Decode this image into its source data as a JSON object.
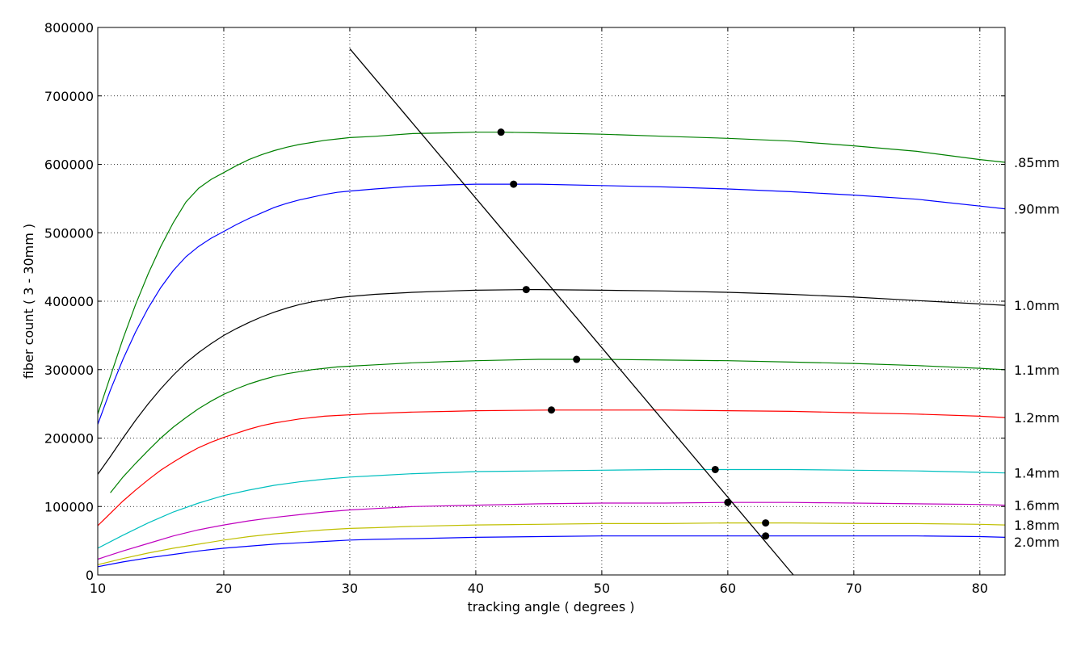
{
  "chart_data": {
    "type": "line",
    "title": "",
    "xlabel": "tracking angle ( degrees )",
    "ylabel": "fiber count ( 3 - 30mm )",
    "xlim": [
      10,
      82
    ],
    "ylim": [
      0,
      800000
    ],
    "grid": true,
    "xticks": [
      10,
      20,
      30,
      40,
      50,
      60,
      70,
      80
    ],
    "yticks": [
      0,
      100000,
      200000,
      300000,
      400000,
      500000,
      600000,
      700000,
      800000
    ],
    "xtick_labels": [
      "10",
      "20",
      "30",
      "40",
      "50",
      "60",
      "70",
      "80"
    ],
    "ytick_labels": [
      "0",
      "100000",
      "200000",
      "300000",
      "400000",
      "500000",
      "600000",
      "700000",
      "800000"
    ],
    "series": [
      {
        "name": ".85mm",
        "label": ".85mm",
        "color": "#008000",
        "points": [
          [
            10,
            235000
          ],
          [
            11,
            290000
          ],
          [
            12,
            345000
          ],
          [
            13,
            395000
          ],
          [
            14,
            440000
          ],
          [
            15,
            480000
          ],
          [
            16,
            515000
          ],
          [
            17,
            545000
          ],
          [
            18,
            565000
          ],
          [
            19,
            578000
          ],
          [
            20,
            588000
          ],
          [
            21,
            598000
          ],
          [
            22,
            607000
          ],
          [
            23,
            614000
          ],
          [
            24,
            620000
          ],
          [
            25,
            625000
          ],
          [
            26,
            629000
          ],
          [
            27,
            632000
          ],
          [
            28,
            635000
          ],
          [
            29,
            637000
          ],
          [
            30,
            639000
          ],
          [
            32,
            641000
          ],
          [
            35,
            645000
          ],
          [
            38,
            646000
          ],
          [
            40,
            647000
          ],
          [
            42,
            647000
          ],
          [
            45,
            646000
          ],
          [
            50,
            644000
          ],
          [
            55,
            641000
          ],
          [
            60,
            638000
          ],
          [
            65,
            634000
          ],
          [
            70,
            627000
          ],
          [
            75,
            619000
          ],
          [
            80,
            607000
          ],
          [
            82,
            603000
          ]
        ],
        "marker": [
          42,
          647000
        ]
      },
      {
        "name": ".90mm",
        "label": ".90mm",
        "color": "#0000ff",
        "points": [
          [
            10,
            220000
          ],
          [
            11,
            270000
          ],
          [
            12,
            315000
          ],
          [
            13,
            355000
          ],
          [
            14,
            390000
          ],
          [
            15,
            420000
          ],
          [
            16,
            445000
          ],
          [
            17,
            465000
          ],
          [
            18,
            480000
          ],
          [
            19,
            492000
          ],
          [
            20,
            502000
          ],
          [
            21,
            512000
          ],
          [
            22,
            521000
          ],
          [
            23,
            529000
          ],
          [
            24,
            537000
          ],
          [
            25,
            543000
          ],
          [
            26,
            548000
          ],
          [
            27,
            552000
          ],
          [
            28,
            556000
          ],
          [
            29,
            559000
          ],
          [
            30,
            561000
          ],
          [
            32,
            564000
          ],
          [
            35,
            568000
          ],
          [
            38,
            570000
          ],
          [
            40,
            571000
          ],
          [
            43,
            571000
          ],
          [
            45,
            571000
          ],
          [
            50,
            569000
          ],
          [
            55,
            567000
          ],
          [
            60,
            564000
          ],
          [
            65,
            560000
          ],
          [
            70,
            555000
          ],
          [
            75,
            549000
          ],
          [
            80,
            539000
          ],
          [
            82,
            535000
          ]
        ],
        "marker": [
          43,
          571000
        ]
      },
      {
        "name": "1.0mm",
        "label": "1.0mm",
        "color": "#000000",
        "points": [
          [
            10,
            147000
          ],
          [
            11,
            173000
          ],
          [
            12,
            200000
          ],
          [
            13,
            226000
          ],
          [
            14,
            250000
          ],
          [
            15,
            272000
          ],
          [
            16,
            292000
          ],
          [
            17,
            310000
          ],
          [
            18,
            325000
          ],
          [
            19,
            338000
          ],
          [
            20,
            350000
          ],
          [
            21,
            360000
          ],
          [
            22,
            369000
          ],
          [
            23,
            377000
          ],
          [
            24,
            384000
          ],
          [
            25,
            390000
          ],
          [
            26,
            395000
          ],
          [
            27,
            399000
          ],
          [
            28,
            402000
          ],
          [
            29,
            405000
          ],
          [
            30,
            407000
          ],
          [
            32,
            410000
          ],
          [
            35,
            413000
          ],
          [
            38,
            415000
          ],
          [
            40,
            416000
          ],
          [
            44,
            417000
          ],
          [
            45,
            417000
          ],
          [
            50,
            416000
          ],
          [
            55,
            415000
          ],
          [
            60,
            413000
          ],
          [
            65,
            410000
          ],
          [
            70,
            406000
          ],
          [
            75,
            401000
          ],
          [
            80,
            396000
          ],
          [
            82,
            394000
          ]
        ],
        "marker": [
          44,
          417000
        ]
      },
      {
        "name": "1.1mm",
        "label": "1.1mm",
        "color": "#008000",
        "points": [
          [
            11,
            120000
          ],
          [
            12,
            143000
          ],
          [
            13,
            163000
          ],
          [
            14,
            182000
          ],
          [
            15,
            200000
          ],
          [
            16,
            216000
          ],
          [
            17,
            230000
          ],
          [
            18,
            243000
          ],
          [
            19,
            254000
          ],
          [
            20,
            264000
          ],
          [
            21,
            272000
          ],
          [
            22,
            279000
          ],
          [
            23,
            285000
          ],
          [
            24,
            290000
          ],
          [
            25,
            294000
          ],
          [
            26,
            297000
          ],
          [
            27,
            300000
          ],
          [
            28,
            302000
          ],
          [
            29,
            304000
          ],
          [
            30,
            305000
          ],
          [
            32,
            307000
          ],
          [
            35,
            310000
          ],
          [
            38,
            312000
          ],
          [
            40,
            313000
          ],
          [
            45,
            315000
          ],
          [
            48,
            315000
          ],
          [
            50,
            315000
          ],
          [
            55,
            314000
          ],
          [
            60,
            313000
          ],
          [
            65,
            311000
          ],
          [
            70,
            309000
          ],
          [
            75,
            306000
          ],
          [
            80,
            302000
          ],
          [
            82,
            300000
          ]
        ],
        "marker": [
          48,
          315000
        ]
      },
      {
        "name": "1.2mm",
        "label": "1.2mm",
        "color": "#ff0000",
        "points": [
          [
            10,
            72000
          ],
          [
            11,
            90000
          ],
          [
            12,
            108000
          ],
          [
            13,
            124000
          ],
          [
            14,
            139000
          ],
          [
            15,
            153000
          ],
          [
            16,
            165000
          ],
          [
            17,
            176000
          ],
          [
            18,
            186000
          ],
          [
            19,
            194000
          ],
          [
            20,
            201000
          ],
          [
            21,
            207000
          ],
          [
            22,
            213000
          ],
          [
            23,
            218000
          ],
          [
            24,
            222000
          ],
          [
            25,
            225000
          ],
          [
            26,
            228000
          ],
          [
            27,
            230000
          ],
          [
            28,
            232000
          ],
          [
            29,
            233000
          ],
          [
            30,
            234000
          ],
          [
            32,
            236000
          ],
          [
            35,
            238000
          ],
          [
            38,
            239000
          ],
          [
            40,
            240000
          ],
          [
            46,
            241000
          ],
          [
            50,
            241000
          ],
          [
            55,
            241000
          ],
          [
            60,
            240000
          ],
          [
            65,
            239000
          ],
          [
            70,
            237000
          ],
          [
            75,
            235000
          ],
          [
            80,
            232000
          ],
          [
            82,
            230000
          ]
        ],
        "marker": [
          46,
          241000
        ]
      },
      {
        "name": "1.4mm",
        "label": "1.4mm",
        "color": "#00bfbf",
        "points": [
          [
            10,
            39000
          ],
          [
            12,
            58000
          ],
          [
            14,
            76000
          ],
          [
            16,
            92000
          ],
          [
            18,
            105000
          ],
          [
            20,
            116000
          ],
          [
            22,
            124000
          ],
          [
            24,
            131000
          ],
          [
            26,
            136000
          ],
          [
            28,
            140000
          ],
          [
            30,
            143000
          ],
          [
            32,
            145000
          ],
          [
            35,
            148000
          ],
          [
            40,
            151000
          ],
          [
            45,
            152000
          ],
          [
            50,
            153000
          ],
          [
            55,
            154000
          ],
          [
            59,
            154000
          ],
          [
            60,
            154000
          ],
          [
            65,
            154000
          ],
          [
            70,
            153000
          ],
          [
            75,
            152000
          ],
          [
            80,
            150000
          ],
          [
            82,
            149000
          ]
        ],
        "marker": [
          59,
          154000
        ]
      },
      {
        "name": "1.6mm",
        "label": "1.6mm",
        "color": "#bf00bf",
        "points": [
          [
            10,
            23000
          ],
          [
            12,
            35000
          ],
          [
            14,
            46000
          ],
          [
            16,
            57000
          ],
          [
            18,
            66000
          ],
          [
            20,
            73000
          ],
          [
            22,
            79000
          ],
          [
            24,
            84000
          ],
          [
            26,
            88000
          ],
          [
            28,
            92000
          ],
          [
            30,
            95000
          ],
          [
            32,
            97000
          ],
          [
            35,
            100000
          ],
          [
            40,
            102000
          ],
          [
            45,
            104000
          ],
          [
            50,
            105000
          ],
          [
            55,
            105000
          ],
          [
            60,
            106000
          ],
          [
            65,
            106000
          ],
          [
            70,
            105000
          ],
          [
            75,
            104000
          ],
          [
            80,
            103000
          ],
          [
            82,
            102000
          ]
        ],
        "marker": [
          60,
          106000
        ]
      },
      {
        "name": "1.8mm",
        "label": "1.8mm",
        "color": "#bfbf00",
        "points": [
          [
            10,
            15000
          ],
          [
            12,
            24000
          ],
          [
            14,
            32000
          ],
          [
            16,
            39000
          ],
          [
            18,
            45000
          ],
          [
            20,
            51000
          ],
          [
            22,
            56000
          ],
          [
            24,
            60000
          ],
          [
            26,
            63000
          ],
          [
            28,
            66000
          ],
          [
            30,
            68000
          ],
          [
            32,
            69000
          ],
          [
            35,
            71000
          ],
          [
            40,
            73000
          ],
          [
            45,
            74000
          ],
          [
            50,
            75000
          ],
          [
            55,
            75000
          ],
          [
            60,
            76000
          ],
          [
            63,
            76000
          ],
          [
            65,
            76000
          ],
          [
            70,
            75000
          ],
          [
            75,
            75000
          ],
          [
            80,
            74000
          ],
          [
            82,
            73000
          ]
        ],
        "marker": [
          63,
          76000
        ]
      },
      {
        "name": "2.0mm",
        "label": "2.0mm",
        "color": "#0000ff",
        "points": [
          [
            10,
            12000
          ],
          [
            12,
            19000
          ],
          [
            14,
            25000
          ],
          [
            16,
            30000
          ],
          [
            18,
            35000
          ],
          [
            20,
            39000
          ],
          [
            22,
            42000
          ],
          [
            24,
            45000
          ],
          [
            26,
            47000
          ],
          [
            28,
            49000
          ],
          [
            30,
            51000
          ],
          [
            32,
            52000
          ],
          [
            35,
            53000
          ],
          [
            40,
            55000
          ],
          [
            45,
            56000
          ],
          [
            50,
            57000
          ],
          [
            55,
            57000
          ],
          [
            60,
            57000
          ],
          [
            63,
            57000
          ],
          [
            65,
            57000
          ],
          [
            70,
            57000
          ],
          [
            75,
            57000
          ],
          [
            80,
            56000
          ],
          [
            82,
            55000
          ]
        ],
        "marker": [
          63,
          57000
        ]
      }
    ],
    "trend_line": {
      "name": "maxima trend",
      "color": "#000000",
      "points": [
        [
          30,
          769000
        ],
        [
          65.2,
          0
        ]
      ]
    }
  }
}
